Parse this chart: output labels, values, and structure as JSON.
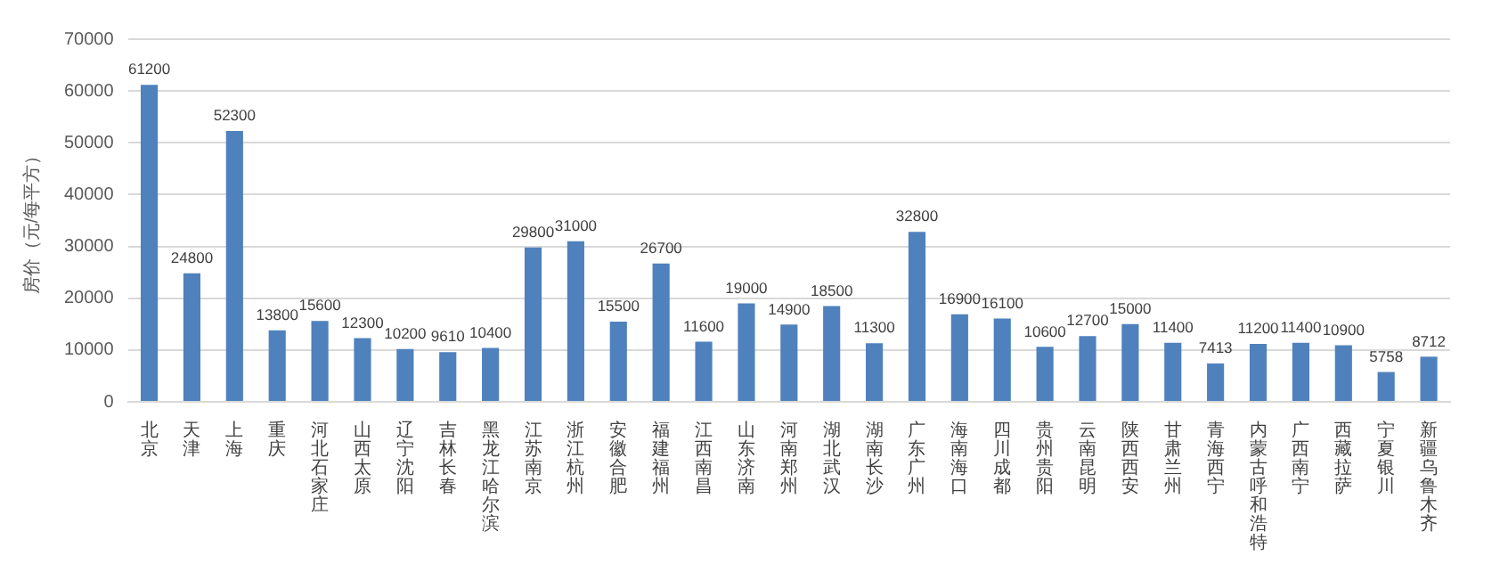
{
  "chart_data": {
    "type": "bar",
    "ylabel": "房价（元/每平方）",
    "categories": [
      "北京",
      "天津",
      "上海",
      "重庆",
      "河北石家庄",
      "山西太原",
      "辽宁沈阳",
      "吉林长春",
      "黑龙江哈尔滨",
      "江苏南京",
      "浙江杭州",
      "安徽合肥",
      "福建福州",
      "江西南昌",
      "山东济南",
      "河南郑州",
      "湖北武汉",
      "湖南长沙",
      "广东广州",
      "海南海口",
      "四川成都",
      "贵州贵阳",
      "云南昆明",
      "陕西西安",
      "甘肃兰州",
      "青海西宁",
      "内蒙古呼和浩特",
      "广西南宁",
      "西藏拉萨",
      "宁夏银川",
      "新疆乌鲁木齐"
    ],
    "values": [
      61200,
      24800,
      52300,
      13800,
      15600,
      12300,
      10200,
      9610,
      10400,
      29800,
      31000,
      15500,
      26700,
      11600,
      19000,
      14900,
      18500,
      11300,
      32800,
      16900,
      16100,
      10600,
      12700,
      15000,
      11400,
      7413,
      11200,
      11400,
      10900,
      5758,
      8712
    ],
    "color": "#4f81bd",
    "ylim": [
      0,
      70000
    ],
    "yticks": [
      0,
      10000,
      20000,
      30000,
      40000,
      50000,
      60000,
      70000
    ],
    "grid": "y",
    "legend": false,
    "data_labels": true
  }
}
